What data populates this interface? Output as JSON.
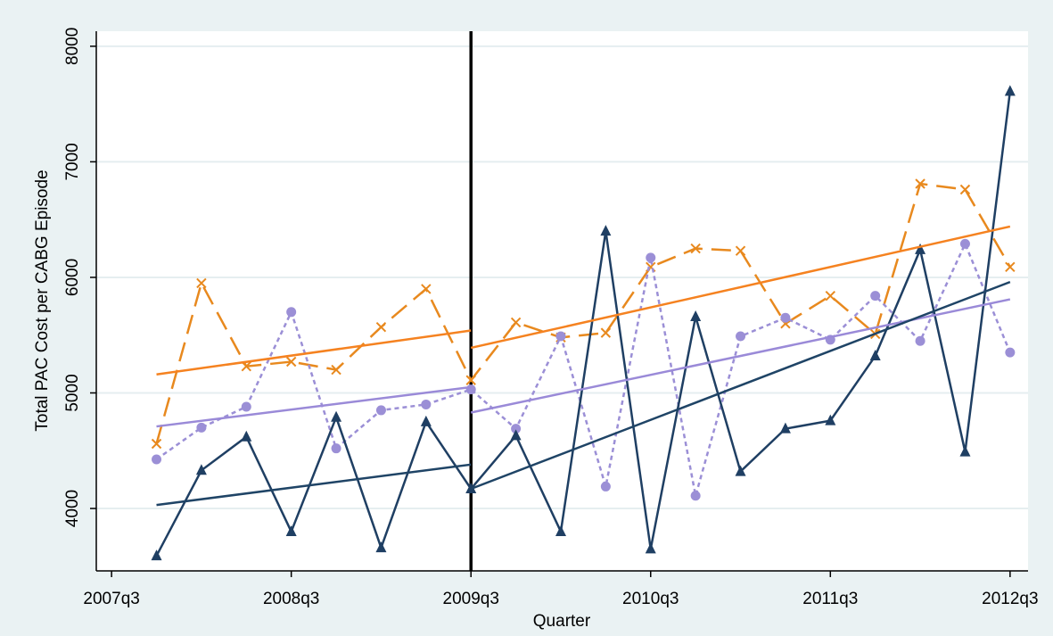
{
  "chart_data": {
    "type": "line",
    "xlabel": "Quarter",
    "ylabel": "Total PAC Cost per CABG Episode",
    "xlim": [
      189.66,
      210.4
    ],
    "xticks": [
      {
        "value": 190,
        "label": "2007q3"
      },
      {
        "value": 194,
        "label": "2008q3"
      },
      {
        "value": 198,
        "label": "2009q3"
      },
      {
        "value": 202,
        "label": "2010q3"
      },
      {
        "value": 206,
        "label": "2011q3"
      },
      {
        "value": 210,
        "label": "2012q3"
      }
    ],
    "ylim": [
      3460,
      8130
    ],
    "yticks": [
      4000,
      5000,
      6000,
      7000,
      8000
    ],
    "grid": true,
    "vline": 198,
    "series": [
      {
        "color": "#e8891e",
        "marker": "x",
        "dash": "22,10",
        "x": [
          191,
          192,
          193,
          194,
          195,
          196,
          197,
          198,
          199,
          200,
          201,
          202,
          203,
          204,
          205,
          206,
          207,
          208,
          209,
          210
        ],
        "values": [
          4560,
          5950,
          5230,
          5270,
          5200,
          5570,
          5900,
          5110,
          5610,
          5480,
          5520,
          6090,
          6250,
          6230,
          5600,
          5840,
          5510,
          6810,
          6760,
          6090
        ]
      },
      {
        "color": "#9b8fd6",
        "marker": "circle",
        "dash": "5,4",
        "x": [
          191,
          192,
          193,
          194,
          195,
          196,
          197,
          198,
          199,
          200,
          201,
          202,
          203,
          204,
          205,
          206,
          207,
          208,
          209,
          210
        ],
        "values": [
          4425,
          4700,
          4880,
          5700,
          4520,
          4850,
          4900,
          5030,
          4690,
          5490,
          4190,
          6170,
          4110,
          5490,
          5650,
          5460,
          5840,
          5450,
          6290,
          5350
        ]
      },
      {
        "color": "#1f3f63",
        "marker": "triangle",
        "dash": "none",
        "x": [
          191,
          192,
          193,
          194,
          195,
          196,
          197,
          198,
          199,
          200,
          201,
          202,
          203,
          204,
          205,
          206,
          207,
          208,
          209,
          210
        ],
        "values": [
          3590,
          4330,
          4620,
          3800,
          4790,
          3660,
          4750,
          4170,
          4630,
          3800,
          6400,
          3650,
          5660,
          4320,
          4690,
          4760,
          5320,
          6240,
          4490,
          7610
        ]
      },
      {
        "color": "#f58220",
        "marker": "none",
        "dash": "none",
        "x": [
          191,
          198
        ],
        "values": [
          5160,
          5540
        ]
      },
      {
        "color": "#f58220",
        "marker": "none",
        "dash": "none",
        "x": [
          198,
          210
        ],
        "values": [
          5390,
          6440
        ]
      },
      {
        "color": "#9a8ad8",
        "marker": "none",
        "dash": "none",
        "x": [
          191,
          198
        ],
        "values": [
          4710,
          5050
        ]
      },
      {
        "color": "#9a8ad8",
        "marker": "none",
        "dash": "none",
        "x": [
          198,
          210
        ],
        "values": [
          4830,
          5810
        ]
      },
      {
        "color": "#1f4466",
        "marker": "none",
        "dash": "none",
        "x": [
          191,
          198
        ],
        "values": [
          4030,
          4380
        ]
      },
      {
        "color": "#1f4466",
        "marker": "none",
        "dash": "none",
        "x": [
          198,
          210
        ],
        "values": [
          4170,
          5960
        ]
      }
    ]
  }
}
